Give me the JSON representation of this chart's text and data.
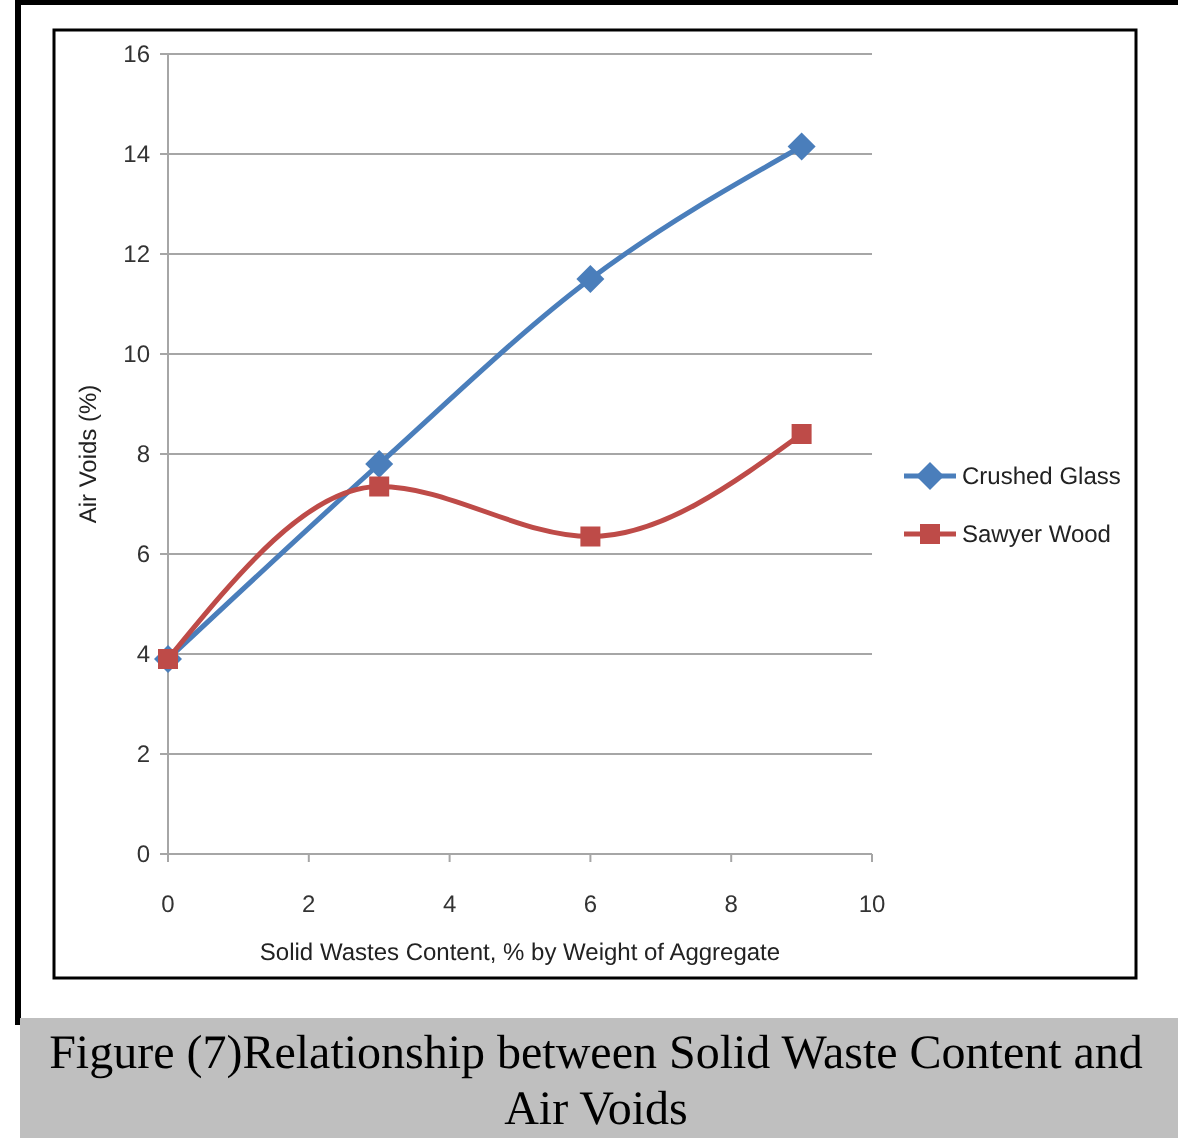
{
  "chart_data": {
    "type": "line",
    "title": "Figure (7)Relationship between Solid Waste Content and Air Voids",
    "xlabel": "Solid Wastes Content, % by Weight of Aggregate",
    "ylabel": "Air Voids (%)",
    "x": [
      0,
      3,
      6,
      9
    ],
    "series": [
      {
        "name": "Crushed Glass",
        "color": "#4a7ebb",
        "marker": "diamond",
        "values": [
          3.9,
          7.8,
          11.5,
          14.15
        ]
      },
      {
        "name": "Sawyer Wood",
        "color": "#be4b48",
        "marker": "square",
        "values": [
          3.9,
          7.35,
          6.35,
          8.4
        ]
      }
    ],
    "xlim": [
      0,
      10
    ],
    "xticks": [
      0,
      2,
      4,
      6,
      8,
      10
    ],
    "ylim": [
      0,
      16
    ],
    "yticks": [
      0,
      2,
      4,
      6,
      8,
      10,
      12,
      14,
      16
    ],
    "grid": "y",
    "legend": "right"
  }
}
